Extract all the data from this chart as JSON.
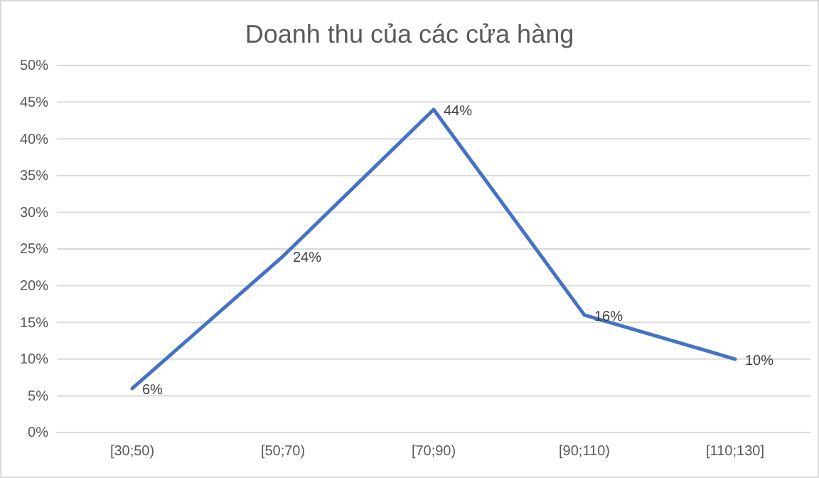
{
  "chart_data": {
    "type": "line",
    "title": "Doanh thu của các cửa hàng",
    "categories": [
      "[30;50)",
      "[50;70)",
      "[70;90)",
      "[90;110)",
      "[110;130]"
    ],
    "series": [
      {
        "color": "#4472c4",
        "values": [
          6,
          24,
          44,
          16,
          10
        ],
        "value_labels": [
          "6%",
          "24%",
          "44%",
          "16%",
          "10%"
        ]
      }
    ],
    "ylim": [
      0,
      50
    ],
    "yticks": [
      {
        "value": 0,
        "label": "0%"
      },
      {
        "value": 5,
        "label": "5%"
      },
      {
        "value": 10,
        "label": "10%"
      },
      {
        "value": 15,
        "label": "15%"
      },
      {
        "value": 20,
        "label": "20%"
      },
      {
        "value": 25,
        "label": "25%"
      },
      {
        "value": 30,
        "label": "30%"
      },
      {
        "value": 35,
        "label": "35%"
      },
      {
        "value": 40,
        "label": "40%"
      },
      {
        "value": 45,
        "label": "45%"
      },
      {
        "value": 50,
        "label": "50%"
      }
    ],
    "grid": "y",
    "marker": "none",
    "line_style": "solid"
  }
}
